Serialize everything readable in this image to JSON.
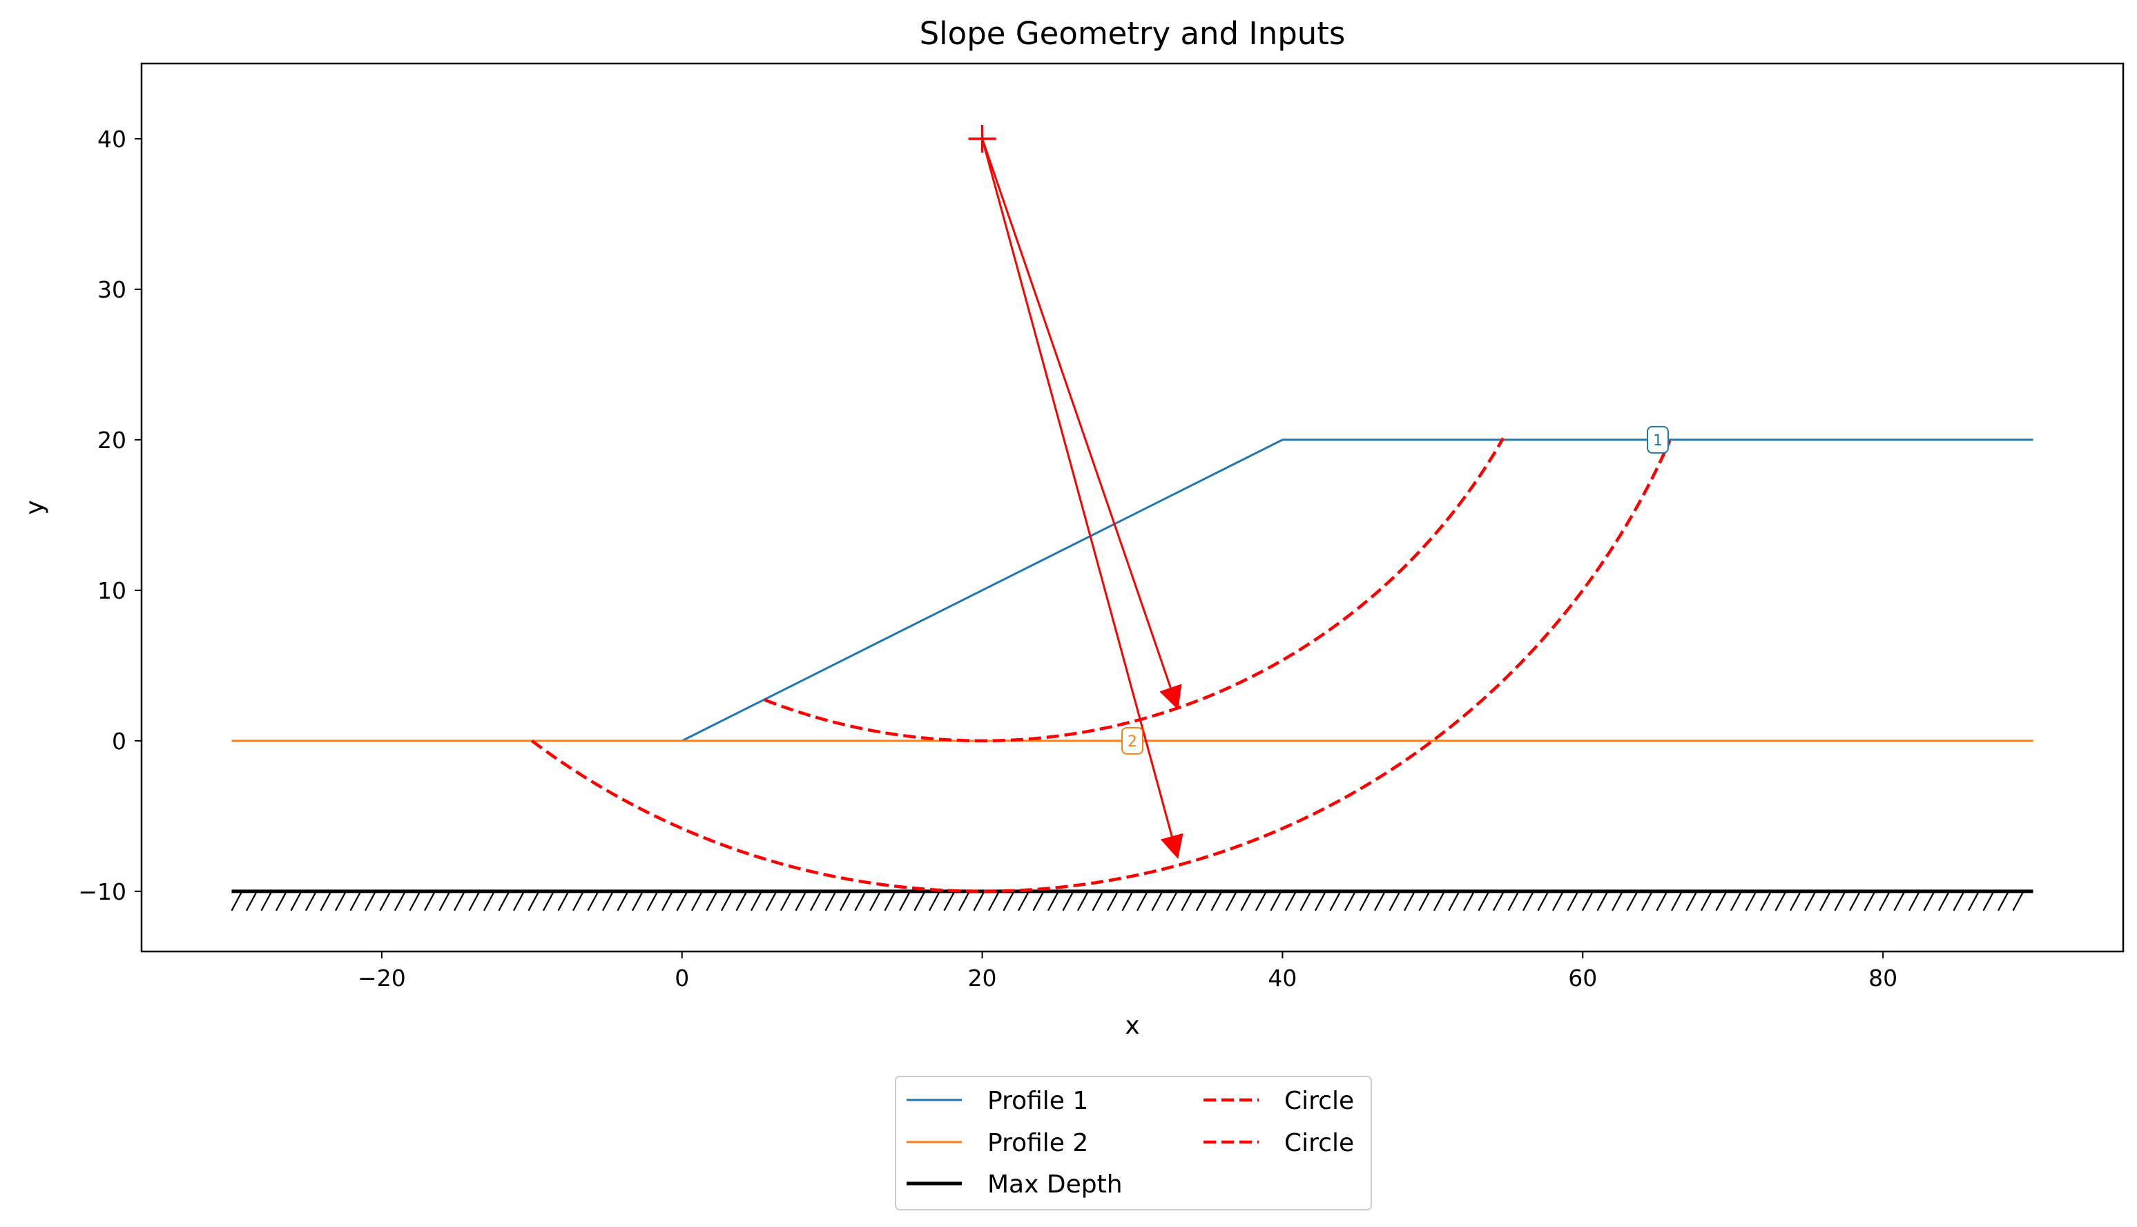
{
  "chart_data": {
    "type": "line",
    "title": "Slope Geometry and Inputs",
    "xlabel": "x",
    "ylabel": "y",
    "xlim": [
      -36,
      96
    ],
    "ylim": [
      -14,
      45
    ],
    "x_ticks": [
      -20,
      0,
      20,
      40,
      60,
      80
    ],
    "y_ticks": [
      -10,
      0,
      10,
      20,
      30,
      40
    ],
    "x_tick_labels": [
      "−20",
      "0",
      "20",
      "40",
      "60",
      "80"
    ],
    "y_tick_labels": [
      "−10",
      "0",
      "10",
      "20",
      "30",
      "40"
    ],
    "grid": false,
    "legend": {
      "placement": "below",
      "columns": 2,
      "entries": [
        {
          "label": "Profile 1",
          "color": "#1f77b4",
          "style": "solid"
        },
        {
          "label": "Profile 2",
          "color": "#ff7f0e",
          "style": "solid"
        },
        {
          "label": "Max Depth",
          "color": "#000000",
          "style": "solid-thick"
        },
        {
          "label": "Circle",
          "color": "#ff0000",
          "style": "dashed"
        },
        {
          "label": "Circle",
          "color": "#ff0000",
          "style": "dashed"
        }
      ]
    },
    "series": [
      {
        "name": "Profile 1",
        "color": "#1f77b4",
        "points": [
          [
            0,
            0
          ],
          [
            40,
            20
          ],
          [
            90,
            20
          ]
        ]
      },
      {
        "name": "Profile 2",
        "color": "#ff7f0e",
        "points": [
          [
            -30,
            0
          ],
          [
            90,
            0
          ]
        ]
      },
      {
        "name": "Max Depth",
        "color": "#000000",
        "points": [
          [
            -30,
            -10
          ],
          [
            90,
            -10
          ]
        ]
      }
    ],
    "circles": [
      {
        "name": "Circle",
        "color": "#ff0000",
        "center": [
          20,
          40
        ],
        "radius": 40,
        "x_range": [
          5.5,
          54.7
        ]
      },
      {
        "name": "Circle",
        "color": "#ff0000",
        "center": [
          20,
          40
        ],
        "radius": 50,
        "x_range": [
          -10,
          65.8
        ]
      }
    ],
    "center_marker": {
      "x": 20,
      "y": 40,
      "color": "#ff0000"
    },
    "arrows": [
      {
        "from": [
          20,
          40
        ],
        "to": [
          33,
          2.2
        ],
        "color": "#ff0000"
      },
      {
        "from": [
          20,
          40
        ],
        "to": [
          33,
          -7.7
        ],
        "color": "#ff0000"
      }
    ],
    "profile_labels": [
      {
        "text": "1",
        "x": 65,
        "y": 20,
        "color": "#1f77b4"
      },
      {
        "text": "2",
        "x": 30,
        "y": 0,
        "color": "#ff7f0e"
      }
    ]
  }
}
